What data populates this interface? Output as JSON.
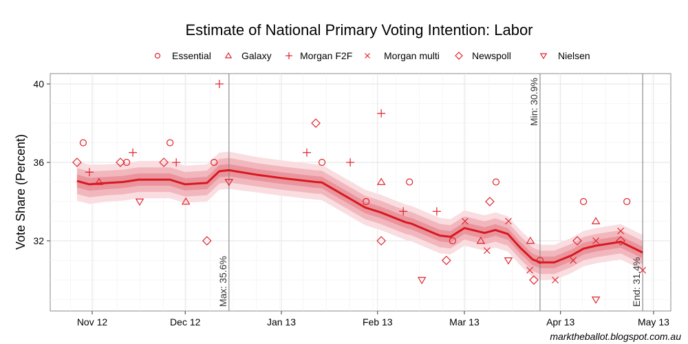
{
  "chart_data": {
    "type": "line",
    "title": "Estimate of National Primary Voting Intention: Labor",
    "xlabel": "",
    "ylabel": "Vote Share (Percent)",
    "credit": "marktheballot.blogspot.com.au",
    "x_unit": "days since 1 Nov 2012",
    "xlim": [
      -9.5,
      182.5
    ],
    "ylim": [
      28.5,
      40.5
    ],
    "x_ticks": [
      {
        "label": "Nov 12",
        "day": 0
      },
      {
        "label": "Dec 12",
        "day": 30
      },
      {
        "label": "Jan 13",
        "day": 61
      },
      {
        "label": "Feb 13",
        "day": 92
      },
      {
        "label": "Mar 13",
        "day": 120
      },
      {
        "label": "Apr 13",
        "day": 151
      },
      {
        "label": "May 13",
        "day": 181
      }
    ],
    "y_ticks": [
      {
        "label": "32",
        "value": 32
      },
      {
        "label": "36",
        "value": 36
      },
      {
        "label": "40",
        "value": 40
      }
    ],
    "grid": true,
    "legend_position": "top",
    "accent_color": "#e0202a",
    "legend": [
      {
        "name": "Essential",
        "shape": "circle"
      },
      {
        "name": "Galaxy",
        "shape": "triangle-up"
      },
      {
        "name": "Morgan F2F",
        "shape": "plus"
      },
      {
        "name": "Morgan multi",
        "shape": "cross"
      },
      {
        "name": "Newspoll",
        "shape": "diamond"
      },
      {
        "name": "Nielsen",
        "shape": "triangle-down"
      }
    ],
    "trend": {
      "name": "Estimate",
      "points": [
        {
          "day": -4.9,
          "value": 35.05,
          "band": 1.0
        },
        {
          "day": -0.9,
          "value": 34.88,
          "band": 1.0
        },
        {
          "day": 5,
          "value": 34.95,
          "band": 0.95
        },
        {
          "day": 10,
          "value": 35.0,
          "band": 0.95
        },
        {
          "day": 15,
          "value": 35.12,
          "band": 0.95
        },
        {
          "day": 25,
          "value": 35.12,
          "band": 0.95
        },
        {
          "day": 30,
          "value": 34.88,
          "band": 0.95
        },
        {
          "day": 37,
          "value": 34.95,
          "band": 0.95
        },
        {
          "day": 41,
          "value": 35.55,
          "band": 0.95
        },
        {
          "day": 44.1,
          "value": 35.6,
          "band": 0.95
        },
        {
          "day": 53,
          "value": 35.37,
          "band": 0.9
        },
        {
          "day": 61,
          "value": 35.2,
          "band": 0.9
        },
        {
          "day": 72,
          "value": 35.0,
          "band": 0.9
        },
        {
          "day": 74,
          "value": 34.98,
          "band": 0.9
        },
        {
          "day": 88,
          "value": 33.7,
          "band": 0.9
        },
        {
          "day": 93,
          "value": 33.45,
          "band": 0.9
        },
        {
          "day": 101,
          "value": 32.95,
          "band": 0.9
        },
        {
          "day": 103,
          "value": 32.87,
          "band": 0.9
        },
        {
          "day": 112,
          "value": 32.27,
          "band": 0.9
        },
        {
          "day": 115.5,
          "value": 32.2,
          "band": 0.9
        },
        {
          "day": 120,
          "value": 32.65,
          "band": 0.9
        },
        {
          "day": 126.5,
          "value": 32.4,
          "band": 0.9
        },
        {
          "day": 130,
          "value": 32.55,
          "band": 0.9
        },
        {
          "day": 134,
          "value": 32.35,
          "band": 0.9
        },
        {
          "day": 138,
          "value": 31.65,
          "band": 0.9
        },
        {
          "day": 142,
          "value": 31.05,
          "band": 0.9
        },
        {
          "day": 144.4,
          "value": 30.9,
          "band": 0.9
        },
        {
          "day": 149,
          "value": 30.9,
          "band": 0.9
        },
        {
          "day": 154.5,
          "value": 31.25,
          "band": 0.9
        },
        {
          "day": 158.4,
          "value": 31.6,
          "band": 0.9
        },
        {
          "day": 162.4,
          "value": 31.75,
          "band": 0.9
        },
        {
          "day": 170.4,
          "value": 31.95,
          "band": 0.9
        },
        {
          "day": 177.5,
          "value": 31.4,
          "band": 0.9
        }
      ]
    },
    "reference_lines": [
      {
        "label": "Max: 35.6%",
        "day": 44.1
      },
      {
        "label": "Min: 30.9%",
        "day": 144.4
      },
      {
        "label": "End: 31.4%",
        "day": 177.5
      }
    ],
    "series": [
      {
        "name": "Essential",
        "shape": "circle",
        "points": [
          {
            "day": -2.9,
            "value": 37
          },
          {
            "day": 11.1,
            "value": 36
          },
          {
            "day": 25.1,
            "value": 37
          },
          {
            "day": 39.3,
            "value": 36
          },
          {
            "day": 74.1,
            "value": 36
          },
          {
            "day": 88.3,
            "value": 34
          },
          {
            "day": 102.3,
            "value": 35
          },
          {
            "day": 116.2,
            "value": 32
          },
          {
            "day": 130.2,
            "value": 35
          },
          {
            "day": 144.4,
            "value": 31
          },
          {
            "day": 158.4,
            "value": 34
          },
          {
            "day": 172.4,
            "value": 34
          }
        ]
      },
      {
        "name": "Galaxy",
        "shape": "triangle-up",
        "points": [
          {
            "day": 2.2,
            "value": 35
          },
          {
            "day": 30.2,
            "value": 34
          },
          {
            "day": 93.2,
            "value": 35
          },
          {
            "day": 125.3,
            "value": 32
          },
          {
            "day": 141.3,
            "value": 32
          },
          {
            "day": 162.4,
            "value": 33
          }
        ]
      },
      {
        "name": "Morgan F2F",
        "shape": "plus",
        "points": [
          {
            "day": -0.9,
            "value": 35.5
          },
          {
            "day": 13.1,
            "value": 36.5
          },
          {
            "day": 27.1,
            "value": 36
          },
          {
            "day": 41.0,
            "value": 40
          },
          {
            "day": 69.2,
            "value": 36.5
          },
          {
            "day": 83.2,
            "value": 36
          },
          {
            "day": 93.2,
            "value": 38.5
          },
          {
            "day": 100.3,
            "value": 33.5
          },
          {
            "day": 111.1,
            "value": 33.5
          }
        ]
      },
      {
        "name": "Morgan multi",
        "shape": "cross",
        "points": [
          {
            "day": 120.2,
            "value": 33
          },
          {
            "day": 127.3,
            "value": 31.5
          },
          {
            "day": 134.2,
            "value": 33
          },
          {
            "day": 141.1,
            "value": 30.5
          },
          {
            "day": 149.3,
            "value": 30
          },
          {
            "day": 155.1,
            "value": 31
          },
          {
            "day": 162.4,
            "value": 32
          },
          {
            "day": 170.4,
            "value": 32.5
          },
          {
            "day": 177.5,
            "value": 30.5
          }
        ]
      },
      {
        "name": "Newspoll",
        "shape": "diamond",
        "points": [
          {
            "day": -4.9,
            "value": 36
          },
          {
            "day": 9.1,
            "value": 36
          },
          {
            "day": 23.1,
            "value": 36
          },
          {
            "day": 37.0,
            "value": 32
          },
          {
            "day": 72.1,
            "value": 38
          },
          {
            "day": 93.2,
            "value": 32
          },
          {
            "day": 114.2,
            "value": 31
          },
          {
            "day": 128.2,
            "value": 34
          },
          {
            "day": 142.4,
            "value": 30
          },
          {
            "day": 156.4,
            "value": 32
          },
          {
            "day": 170.4,
            "value": 32
          }
        ]
      },
      {
        "name": "Nielsen",
        "shape": "triangle-down",
        "points": [
          {
            "day": 15.3,
            "value": 34
          },
          {
            "day": 44.1,
            "value": 35
          },
          {
            "day": 106.3,
            "value": 30
          },
          {
            "day": 134.2,
            "value": 31
          },
          {
            "day": 162.4,
            "value": 29
          }
        ]
      }
    ]
  }
}
